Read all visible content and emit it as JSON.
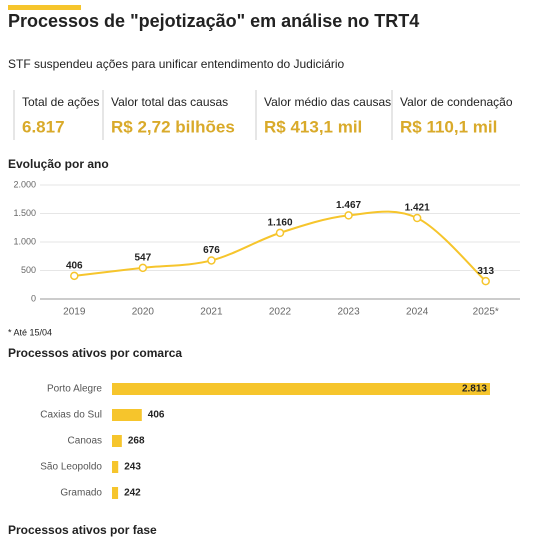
{
  "header": {
    "title": "Processos de \"pejotização\" em análise no TRT4",
    "subtitle": "STF suspendeu ações para unificar entendimento do Judiciário"
  },
  "kpis": [
    {
      "label": "Total de ações",
      "value": "6.817"
    },
    {
      "label": "Valor total das causas",
      "value": "R$ 2,72 bilhões"
    },
    {
      "label": "Valor médio das causas",
      "value": "R$ 413,1 mil"
    },
    {
      "label": "Valor de condenação",
      "value": "R$ 110,1 mil"
    }
  ],
  "chart_data": [
    {
      "type": "line",
      "title": "Evolução por ano",
      "note": "* Até 15/04",
      "categories": [
        "2019",
        "2020",
        "2021",
        "2022",
        "2023",
        "2024",
        "2025*"
      ],
      "values": [
        406,
        547,
        676,
        1160,
        1467,
        1421,
        313
      ],
      "value_labels": [
        "406",
        "547",
        "676",
        "1.160",
        "1.467",
        "1.421",
        "313"
      ],
      "color": "#f6c52c",
      "ylim": [
        0,
        2000
      ],
      "yticks": [
        0,
        500,
        {
          "value": 1000,
          "label": "1.000"
        },
        {
          "value": 1500,
          "label": "1.500"
        },
        {
          "value": 2000,
          "label": "2.000"
        }
      ],
      "grid": true
    },
    {
      "type": "hbar",
      "title": "Processos ativos por comarca",
      "categories": [
        "Porto Alegre",
        "Caxias do Sul",
        "Canoas",
        "São Leopoldo",
        "Gramado"
      ],
      "values": [
        2813,
        406,
        268,
        243,
        242
      ],
      "value_labels": [
        "2.813",
        "406",
        "268",
        "243",
        "242"
      ],
      "color": "#f6c52c",
      "xlim": [
        200,
        2813
      ]
    }
  ],
  "next_section": {
    "title": "Processos ativos por fase"
  }
}
